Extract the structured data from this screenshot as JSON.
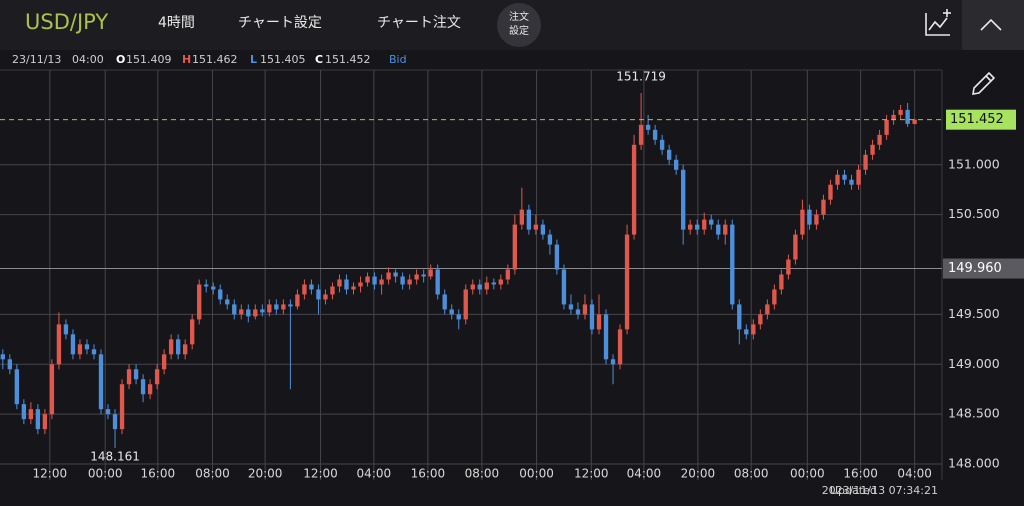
{
  "header": {
    "symbol": "USD/JPY",
    "interval": "4時間",
    "chart_settings": "チャート設定",
    "chart_order": "チャート注文",
    "order_settings": [
      "注文",
      "設定"
    ]
  },
  "info_bar": {
    "date": "23/11/13",
    "time": "04:00",
    "fields": [
      "O",
      "H",
      "L",
      "C"
    ],
    "price_side": "Bid"
  },
  "chart_data": {
    "type": "candlestick",
    "ohlc": [
      [
        149.1,
        149.15,
        148.95,
        149.05
      ],
      [
        149.05,
        149.1,
        148.9,
        148.95
      ],
      [
        148.95,
        149.0,
        148.55,
        148.6
      ],
      [
        148.6,
        148.65,
        148.4,
        148.45
      ],
      [
        148.45,
        148.62,
        148.4,
        148.55
      ],
      [
        148.55,
        148.6,
        148.3,
        148.35
      ],
      [
        148.35,
        148.55,
        148.3,
        148.5
      ],
      [
        148.5,
        149.05,
        148.45,
        149.0
      ],
      [
        149.0,
        149.52,
        148.95,
        149.4
      ],
      [
        149.4,
        149.45,
        149.25,
        149.3
      ],
      [
        149.3,
        149.35,
        149.05,
        149.1
      ],
      [
        149.1,
        149.25,
        149.05,
        149.2
      ],
      [
        149.2,
        149.25,
        149.1,
        149.15
      ],
      [
        149.15,
        149.2,
        149.05,
        149.1
      ],
      [
        149.1,
        149.15,
        148.5,
        148.55
      ],
      [
        148.55,
        148.6,
        148.45,
        148.5
      ],
      [
        148.5,
        148.55,
        148.161,
        148.35
      ],
      [
        148.35,
        148.85,
        148.3,
        148.8
      ],
      [
        148.8,
        149.0,
        148.75,
        148.95
      ],
      [
        148.95,
        149.0,
        148.8,
        148.85
      ],
      [
        148.85,
        148.9,
        148.62,
        148.7
      ],
      [
        148.7,
        148.85,
        148.65,
        148.8
      ],
      [
        148.8,
        149.0,
        148.75,
        148.95
      ],
      [
        148.95,
        149.15,
        148.9,
        149.1
      ],
      [
        149.1,
        149.3,
        149.05,
        149.25
      ],
      [
        149.25,
        149.3,
        149.05,
        149.1
      ],
      [
        149.1,
        149.25,
        149.05,
        149.2
      ],
      [
        149.2,
        149.5,
        149.15,
        149.45
      ],
      [
        149.45,
        149.85,
        149.4,
        149.8
      ],
      [
        149.8,
        149.85,
        149.72,
        149.78
      ],
      [
        149.78,
        149.82,
        149.7,
        149.75
      ],
      [
        149.75,
        149.8,
        149.6,
        149.65
      ],
      [
        149.65,
        149.7,
        149.55,
        149.6
      ],
      [
        149.6,
        149.65,
        149.45,
        149.5
      ],
      [
        149.5,
        149.6,
        149.45,
        149.55
      ],
      [
        149.55,
        149.6,
        149.42,
        149.48
      ],
      [
        149.48,
        149.6,
        149.45,
        149.55
      ],
      [
        149.55,
        149.6,
        149.48,
        149.52
      ],
      [
        149.52,
        149.65,
        149.48,
        149.6
      ],
      [
        149.6,
        149.65,
        149.5,
        149.55
      ],
      [
        149.55,
        149.65,
        149.5,
        149.6
      ],
      [
        149.6,
        149.65,
        148.75,
        149.58
      ],
      [
        149.58,
        149.75,
        149.55,
        149.7
      ],
      [
        149.7,
        149.85,
        149.65,
        149.8
      ],
      [
        149.8,
        149.85,
        149.7,
        149.75
      ],
      [
        149.75,
        149.8,
        149.5,
        149.65
      ],
      [
        149.65,
        149.75,
        149.6,
        149.7
      ],
      [
        149.7,
        149.82,
        149.65,
        149.78
      ],
      [
        149.78,
        149.9,
        149.72,
        149.85
      ],
      [
        149.85,
        149.9,
        149.7,
        149.75
      ],
      [
        149.75,
        149.82,
        149.7,
        149.78
      ],
      [
        149.78,
        149.88,
        149.72,
        149.82
      ],
      [
        149.82,
        149.92,
        149.78,
        149.88
      ],
      [
        149.88,
        149.92,
        149.75,
        149.8
      ],
      [
        149.8,
        149.9,
        149.7,
        149.85
      ],
      [
        149.85,
        149.97,
        149.8,
        149.92
      ],
      [
        149.92,
        149.95,
        149.82,
        149.88
      ],
      [
        149.88,
        149.92,
        149.75,
        149.8
      ],
      [
        149.8,
        149.9,
        149.75,
        149.85
      ],
      [
        149.85,
        149.95,
        149.8,
        149.9
      ],
      [
        149.9,
        149.95,
        149.82,
        149.88
      ],
      [
        149.88,
        150.0,
        149.85,
        149.95
      ],
      [
        149.95,
        150.0,
        149.65,
        149.7
      ],
      [
        149.7,
        149.75,
        149.5,
        149.55
      ],
      [
        149.55,
        149.6,
        149.45,
        149.5
      ],
      [
        149.5,
        149.55,
        149.35,
        149.45
      ],
      [
        149.45,
        149.8,
        149.4,
        149.75
      ],
      [
        149.75,
        149.85,
        149.7,
        149.8
      ],
      [
        149.8,
        149.85,
        149.7,
        149.75
      ],
      [
        149.75,
        149.88,
        149.7,
        149.82
      ],
      [
        149.82,
        149.86,
        149.75,
        149.8
      ],
      [
        149.8,
        149.9,
        149.75,
        149.85
      ],
      [
        149.85,
        150.0,
        149.8,
        149.95
      ],
      [
        149.95,
        150.5,
        149.9,
        150.4
      ],
      [
        150.4,
        150.77,
        150.35,
        150.55
      ],
      [
        150.55,
        150.6,
        150.3,
        150.35
      ],
      [
        150.35,
        150.5,
        150.3,
        150.4
      ],
      [
        150.4,
        150.45,
        150.25,
        150.3
      ],
      [
        150.3,
        150.35,
        150.1,
        150.2
      ],
      [
        150.2,
        150.25,
        149.9,
        149.95
      ],
      [
        149.95,
        150.0,
        149.55,
        149.6
      ],
      [
        149.6,
        149.7,
        149.5,
        149.55
      ],
      [
        149.55,
        149.62,
        149.45,
        149.5
      ],
      [
        149.5,
        149.7,
        149.45,
        149.6
      ],
      [
        149.6,
        149.65,
        149.3,
        149.35
      ],
      [
        149.35,
        149.7,
        149.3,
        149.5
      ],
      [
        149.5,
        149.55,
        149.0,
        149.05
      ],
      [
        149.05,
        149.1,
        148.8,
        149.0
      ],
      [
        149.0,
        149.4,
        148.95,
        149.35
      ],
      [
        149.35,
        150.4,
        149.3,
        150.3
      ],
      [
        150.3,
        151.3,
        150.25,
        151.2
      ],
      [
        151.2,
        151.719,
        151.15,
        151.4
      ],
      [
        151.4,
        151.5,
        151.3,
        151.35
      ],
      [
        151.35,
        151.4,
        151.2,
        151.25
      ],
      [
        151.25,
        151.3,
        151.1,
        151.15
      ],
      [
        151.15,
        151.2,
        151.0,
        151.05
      ],
      [
        151.05,
        151.1,
        150.9,
        150.95
      ],
      [
        150.95,
        151.0,
        150.2,
        150.35
      ],
      [
        150.35,
        150.45,
        150.3,
        150.4
      ],
      [
        150.4,
        150.45,
        150.3,
        150.35
      ],
      [
        150.35,
        150.52,
        150.3,
        150.45
      ],
      [
        150.45,
        150.5,
        150.35,
        150.4
      ],
      [
        150.4,
        150.45,
        150.25,
        150.3
      ],
      [
        150.3,
        150.45,
        150.2,
        150.4
      ],
      [
        150.4,
        150.45,
        149.55,
        149.6
      ],
      [
        149.6,
        149.65,
        149.2,
        149.35
      ],
      [
        149.35,
        149.4,
        149.25,
        149.3
      ],
      [
        149.3,
        149.45,
        149.25,
        149.4
      ],
      [
        149.4,
        149.55,
        149.35,
        149.5
      ],
      [
        149.5,
        149.65,
        149.45,
        149.6
      ],
      [
        149.6,
        149.8,
        149.55,
        149.75
      ],
      [
        149.75,
        149.95,
        149.7,
        149.9
      ],
      [
        149.9,
        150.1,
        149.85,
        150.05
      ],
      [
        150.05,
        150.35,
        150.0,
        150.3
      ],
      [
        150.3,
        150.65,
        150.25,
        150.55
      ],
      [
        150.55,
        150.6,
        150.35,
        150.4
      ],
      [
        150.4,
        150.55,
        150.35,
        150.5
      ],
      [
        150.5,
        150.7,
        150.45,
        150.65
      ],
      [
        150.65,
        150.85,
        150.6,
        150.8
      ],
      [
        150.8,
        150.95,
        150.75,
        150.9
      ],
      [
        150.9,
        150.95,
        150.8,
        150.85
      ],
      [
        150.85,
        150.9,
        150.75,
        150.8
      ],
      [
        150.8,
        151.0,
        150.75,
        150.95
      ],
      [
        150.95,
        151.15,
        150.9,
        151.1
      ],
      [
        151.1,
        151.25,
        151.05,
        151.2
      ],
      [
        151.2,
        151.35,
        151.15,
        151.3
      ],
      [
        151.3,
        151.5,
        151.25,
        151.45
      ],
      [
        151.45,
        151.55,
        151.4,
        151.5
      ],
      [
        151.5,
        151.6,
        151.45,
        151.55
      ],
      [
        151.55,
        151.62,
        151.38,
        151.41
      ],
      [
        151.409,
        151.462,
        151.405,
        151.452
      ]
    ],
    "up_color": "#e0574c",
    "down_color": "#4d8fdb",
    "last_price_color": "#a6e35f",
    "xlim": [
      -0.4,
      133.9
    ],
    "xticks": [
      {
        "value": 6.7,
        "label": "12:00"
      },
      {
        "value": 14.6,
        "label": "00:00"
      },
      {
        "value": 22.1,
        "label": "16:00"
      },
      {
        "value": 29.9,
        "label": "08:00"
      },
      {
        "value": 37.4,
        "label": "20:00"
      },
      {
        "value": 45.3,
        "label": "12:00"
      },
      {
        "value": 52.9,
        "label": "04:00"
      },
      {
        "value": 60.6,
        "label": "16:00"
      },
      {
        "value": 68.3,
        "label": "08:00"
      },
      {
        "value": 76.1,
        "label": "00:00"
      },
      {
        "value": 83.9,
        "label": "12:00"
      },
      {
        "value": 91.4,
        "label": "04:00"
      },
      {
        "value": 99.1,
        "label": "20:00"
      },
      {
        "value": 106.7,
        "label": "08:00"
      },
      {
        "value": 114.7,
        "label": "00:00"
      },
      {
        "value": 122.3,
        "label": "16:00"
      },
      {
        "value": 130,
        "label": "04:00"
      }
    ],
    "ylim": [
      147.84,
      151.95
    ],
    "yticks": [
      {
        "value": 148,
        "label": "148.000"
      },
      {
        "value": 148.5,
        "label": "148.500"
      },
      {
        "value": 149,
        "label": "149.000"
      },
      {
        "value": 149.5,
        "label": "149.500"
      },
      {
        "value": 150.5,
        "label": "150.500"
      },
      {
        "value": 151,
        "label": "151.000"
      }
    ],
    "grid": true,
    "reference_line": {
      "value": 149.96,
      "label": "149.960"
    }
  },
  "footer": {
    "updated_label": "Updated",
    "timestamp": "2023/11/13 07:34:21"
  }
}
